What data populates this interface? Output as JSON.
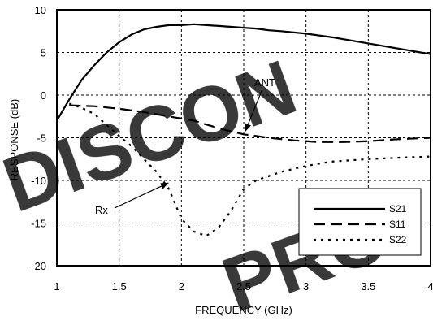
{
  "chart_data": {
    "type": "line",
    "xlabel": "FREQUENCY (GHz)",
    "ylabel": "RESPONSE (dB)",
    "xlim": [
      1,
      4
    ],
    "ylim": [
      -20,
      10
    ],
    "x_ticks": [
      "1",
      "1.5",
      "2",
      "2.5",
      "3",
      "3.5",
      "4"
    ],
    "y_ticks": [
      "10",
      "5",
      "0",
      "-5",
      "-10",
      "-15",
      "-20"
    ],
    "grid": true,
    "legend_position": "lower-right",
    "series": [
      {
        "name": "S21",
        "style": "solid",
        "x": [
          1.0,
          1.1,
          1.2,
          1.3,
          1.4,
          1.5,
          1.6,
          1.7,
          1.8,
          1.9,
          2.0,
          2.1,
          2.2,
          2.3,
          2.4,
          2.5,
          2.6,
          2.7,
          2.8,
          3.0,
          3.2,
          3.4,
          3.6,
          3.8,
          4.0
        ],
        "y": [
          -3.0,
          -0.5,
          1.8,
          3.5,
          5.0,
          6.2,
          7.1,
          7.7,
          8.0,
          8.2,
          8.2,
          8.3,
          8.2,
          8.1,
          8.0,
          7.9,
          7.8,
          7.6,
          7.5,
          7.2,
          6.8,
          6.3,
          5.8,
          5.3,
          4.8
        ]
      },
      {
        "name": "S11",
        "style": "dashed",
        "x": [
          1.1,
          1.3,
          1.5,
          1.7,
          1.9,
          2.1,
          2.3,
          2.5,
          2.7,
          2.9,
          3.1,
          3.3,
          3.5,
          3.7,
          4.0
        ],
        "y": [
          -1.2,
          -1.3,
          -1.6,
          -2.0,
          -2.5,
          -3.0,
          -3.9,
          -4.6,
          -5.0,
          -5.3,
          -5.5,
          -5.5,
          -5.4,
          -5.2,
          -5.0
        ]
      },
      {
        "name": "S22",
        "style": "dotted",
        "x": [
          1.1,
          1.2,
          1.3,
          1.4,
          1.5,
          1.6,
          1.7,
          1.8,
          1.9,
          2.0,
          2.1,
          2.2,
          2.3,
          2.4,
          2.5,
          2.6,
          2.8,
          3.0,
          3.2,
          3.5,
          3.8,
          4.0
        ],
        "y": [
          -1.0,
          -1.5,
          -2.2,
          -3.5,
          -4.8,
          -6.0,
          -7.5,
          -9.0,
          -11.0,
          -14.5,
          -16.0,
          -16.5,
          -15.5,
          -13.5,
          -11.0,
          -10.0,
          -9.0,
          -8.3,
          -7.8,
          -7.5,
          -7.3,
          -7.2
        ]
      }
    ],
    "annotations": [
      {
        "text": "ANT",
        "x": 2.5,
        "y": -4.6
      },
      {
        "text": "Rx",
        "x": 1.88,
        "y": -10.3
      }
    ]
  },
  "watermark": {
    "word1": "DISCON",
    "word2": "PRO"
  }
}
